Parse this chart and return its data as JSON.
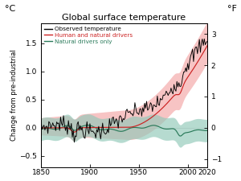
{
  "title": "Global surface temperature",
  "ylabel_left": "Change from pre-industrial",
  "ylabel_left_unit": "°C",
  "ylabel_right_unit": "°F",
  "xlim": [
    1850,
    2020
  ],
  "ylim_c": [
    -0.7,
    1.85
  ],
  "yticks_c": [
    -0.5,
    0,
    0.5,
    1.0,
    1.5
  ],
  "yticks_f": [
    -1.0,
    0,
    1.0,
    2.0,
    3.0
  ],
  "xticks": [
    1850,
    1900,
    1950,
    2000,
    2020
  ],
  "observed_color": "#000000",
  "human_natural_color": "#cc2222",
  "natural_only_color": "#2a7a5a",
  "human_natural_shade": "#f5b0b0",
  "natural_only_shade": "#90c8b8",
  "legend_labels": [
    "Observed temperature",
    "Human and natural drivers",
    "Natural drivers only"
  ],
  "figsize": [
    3.0,
    2.25
  ],
  "dpi": 100
}
